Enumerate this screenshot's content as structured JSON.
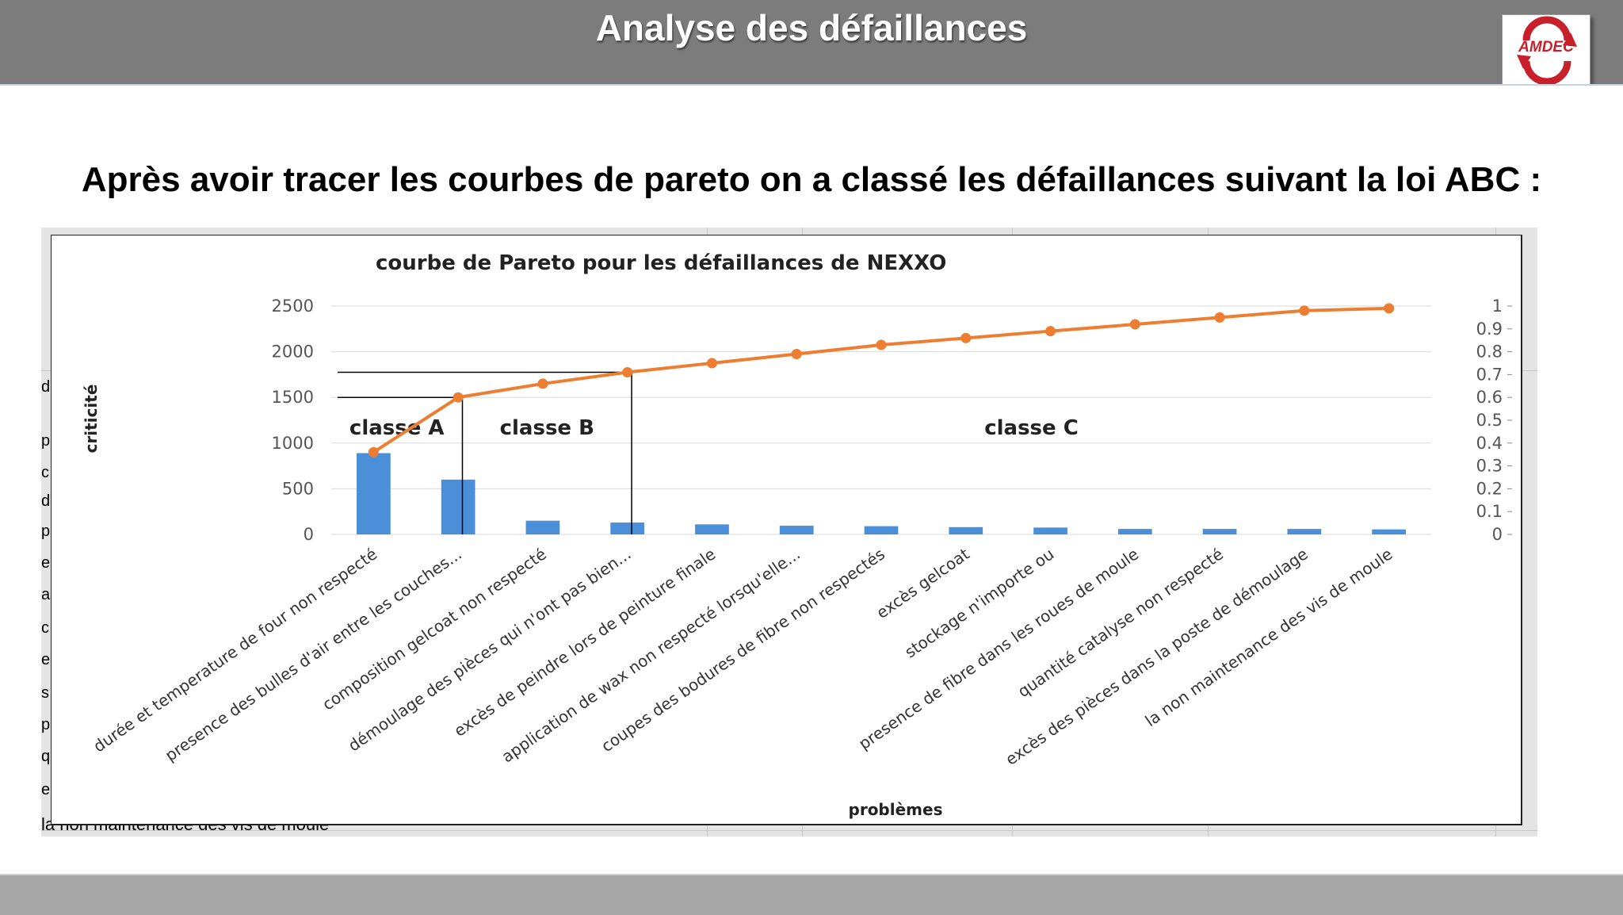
{
  "slide": {
    "title": "Analyse des défaillances",
    "logo_text": "AMDEC",
    "heading": "Après avoir tracer les courbes de pareto on a classé les défaillances suivant la loi ABC :",
    "colors": {
      "header_bg": "#7c7c7c",
      "logo_red": "#c8202a"
    }
  },
  "sheet": {
    "row_letters": [
      "d",
      "p",
      "c",
      "d",
      "p",
      "e",
      "a",
      "c",
      "e",
      "s",
      "p",
      "q",
      "e"
    ],
    "cell_text": "la non maintenance des vis de moule"
  },
  "chart_data": {
    "type": "bar",
    "title": "courbe de Pareto pour les défaillances de NEXXO",
    "xlabel": "problèmes",
    "ylabel": "criticité",
    "ylim": [
      0,
      2500
    ],
    "y2lim": [
      0,
      1
    ],
    "y_ticks": [
      "0",
      "500",
      "1000",
      "1500",
      "2000",
      "2500"
    ],
    "y2_ticks": [
      "0",
      "0.1",
      "0.2",
      "0.3",
      "0.4",
      "0.5",
      "0.6",
      "0.7",
      "0.8",
      "0.9",
      "1"
    ],
    "categories": [
      "durée et temperature de four non respecté",
      "presence des bulles d'air entre les couches...",
      "composition gelcoat non respecté",
      "démoulage des pièces qui n'ont pas bien...",
      "excès de peindre lors de peinture finale",
      "application de wax non respecté lorsqu'elle...",
      "coupes des bodures de fibre non respectés",
      "excès gelcoat",
      "stockage n'importe ou",
      "presence de fibre dans les roues de moule",
      "quantité catalyse non respecté",
      "excès des pièces dans la poste de démoulage",
      "la non maintenance des vis de moule"
    ],
    "series": [
      {
        "type": "bar",
        "values": [
          890,
          600,
          150,
          130,
          110,
          95,
          90,
          80,
          75,
          60,
          60,
          60,
          55
        ],
        "color": "#4a8fd8"
      },
      {
        "type": "line",
        "axis": "right",
        "values": [
          0.36,
          0.6,
          0.66,
          0.71,
          0.75,
          0.79,
          0.83,
          0.86,
          0.89,
          0.92,
          0.95,
          0.98,
          0.99
        ],
        "color": "#ed7d31"
      }
    ],
    "classes": [
      {
        "label": "classe A",
        "cumulative": 0.6
      },
      {
        "label": "classe B",
        "cumulative": 0.71
      },
      {
        "label": "classe C"
      }
    ],
    "grid": true,
    "legend": "none"
  }
}
